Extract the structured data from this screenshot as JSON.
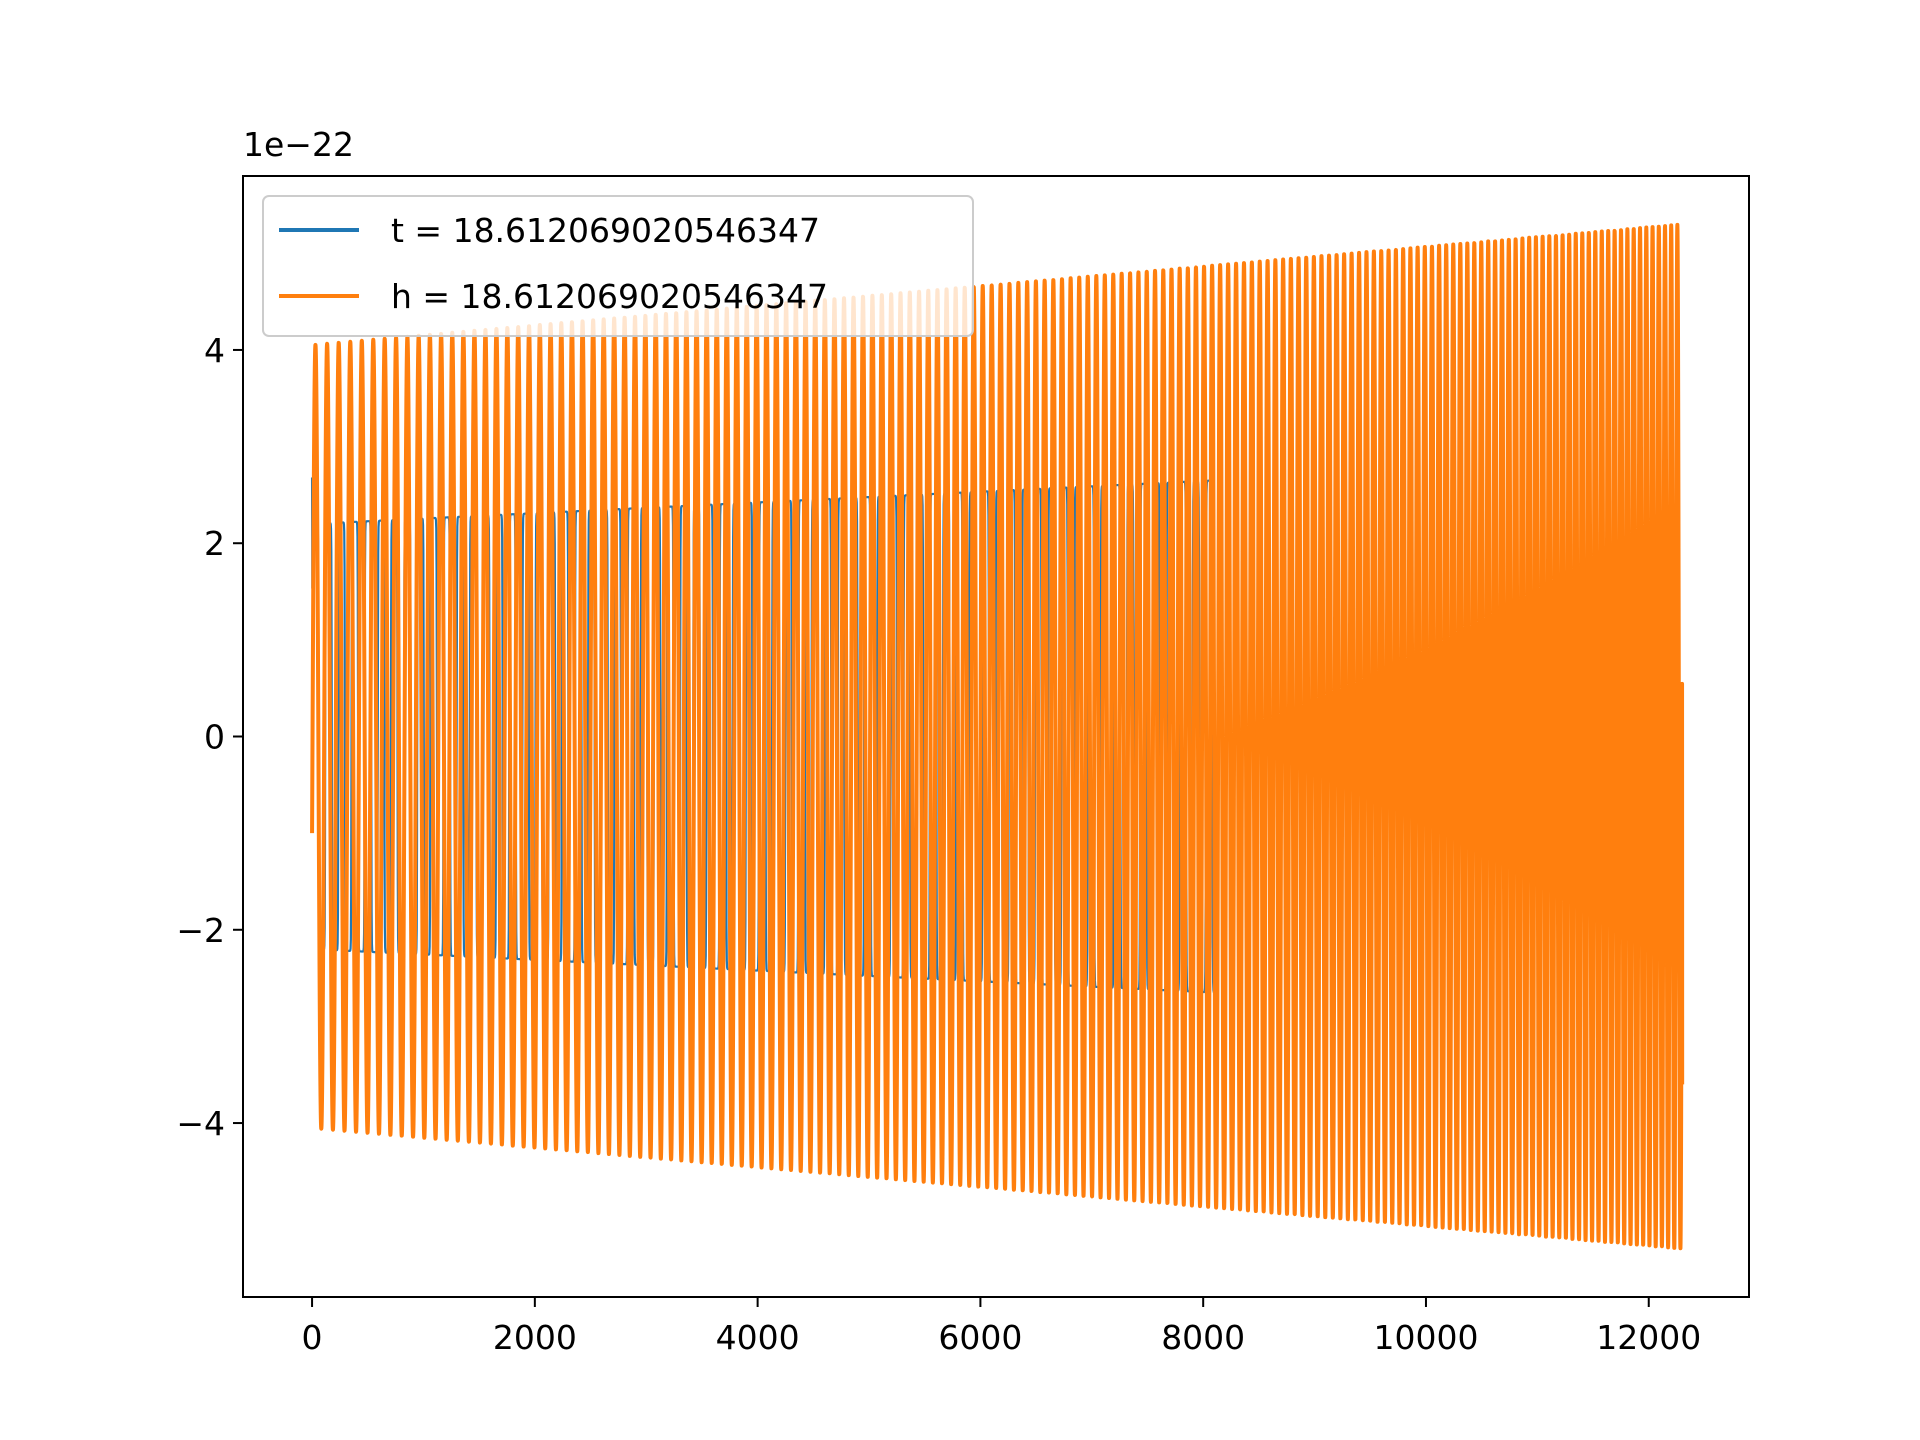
{
  "chart_data": {
    "type": "line",
    "title": "",
    "xlabel": "",
    "ylabel": "",
    "y_offset_label": "1e−22",
    "xlim": [
      -620,
      12900
    ],
    "ylim": [
      -5.8,
      5.8
    ],
    "x_ticks": [
      0,
      2000,
      4000,
      6000,
      8000,
      10000,
      12000
    ],
    "x_tick_labels": [
      "0",
      "2000",
      "4000",
      "6000",
      "8000",
      "10000",
      "12000"
    ],
    "y_ticks": [
      -4,
      -2,
      0,
      2,
      4
    ],
    "y_tick_labels": [
      "−4",
      "−2",
      "0",
      "2",
      "4"
    ],
    "grid": false,
    "legend_position": "top-left",
    "series": [
      {
        "name": "t = 18.612069020546347",
        "color": "#1f77b4",
        "x_range": [
          0,
          8100
        ],
        "amplitude_start": 2.2,
        "amplitude_end": 2.65,
        "initial_value": 2.68,
        "shape": "square-like oscillation in bursts"
      },
      {
        "name": "h = 18.612069020546347",
        "color": "#ff7f0e",
        "x_range": [
          0,
          12300
        ],
        "amplitude_start": 4.05,
        "amplitude_end": 5.3,
        "initial_value": -1.0,
        "final_value": -3.6,
        "period_start": 105,
        "period_end": 55,
        "shape": "sinusoidal chirp"
      }
    ]
  }
}
